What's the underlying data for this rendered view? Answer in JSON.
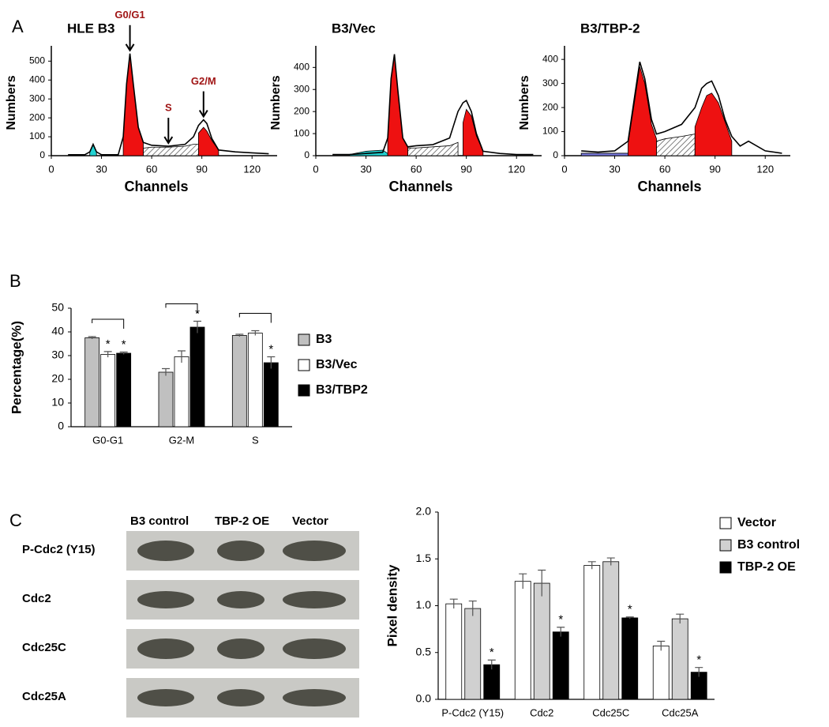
{
  "panel_labels": [
    "A",
    "B",
    "C"
  ],
  "blot": {
    "columns": [
      "B3 control",
      "TBP-2 OE",
      "Vector"
    ],
    "rows": [
      "P-Cdc2 (Y15)",
      "Cdc2",
      "Cdc25C",
      "Cdc25A"
    ]
  },
  "chart_data": [
    {
      "type": "area",
      "title": "HLE B3",
      "x_label": "Channels",
      "y_label": "Numbers",
      "xlim": [
        0,
        135
      ],
      "xticks": [
        0,
        30,
        60,
        90,
        120
      ],
      "ylim": [
        0,
        560
      ],
      "yticks": [
        0,
        100,
        200,
        300,
        400,
        500
      ],
      "x": [
        10,
        20,
        23,
        25,
        27,
        30,
        40,
        43,
        45,
        47,
        49,
        52,
        55,
        60,
        70,
        80,
        85,
        88,
        91,
        93,
        96,
        100,
        110,
        120,
        130
      ],
      "series": [
        {
          "style": "area",
          "color": "#22d3d3",
          "values": [
            null,
            null,
            20,
            60,
            20,
            null,
            null,
            null,
            null,
            null,
            null,
            null,
            null,
            null,
            null,
            null,
            null,
            null,
            null,
            null,
            null,
            null,
            null,
            null,
            null
          ]
        },
        {
          "style": "hatched",
          "color": "#666666",
          "values": [
            null,
            null,
            null,
            null,
            null,
            null,
            null,
            null,
            null,
            null,
            null,
            null,
            40,
            45,
            45,
            50,
            60,
            60,
            null,
            null,
            null,
            null,
            null,
            null,
            null
          ]
        },
        {
          "style": "area",
          "color": "#ee1111",
          "values": [
            null,
            null,
            null,
            null,
            null,
            null,
            null,
            100,
            380,
            540,
            380,
            150,
            70,
            null,
            null,
            null,
            null,
            120,
            150,
            130,
            80,
            30,
            null,
            null,
            null
          ]
        },
        {
          "style": "line",
          "color": "#000000",
          "values": [
            5,
            5,
            20,
            60,
            20,
            5,
            5,
            100,
            380,
            540,
            380,
            150,
            70,
            55,
            50,
            60,
            100,
            160,
            190,
            170,
            90,
            30,
            20,
            15,
            10
          ]
        }
      ],
      "annotations": [
        {
          "text": "G0/G1",
          "x": 47
        },
        {
          "text": "S",
          "x": 70
        },
        {
          "text": "G2/M",
          "x": 91
        }
      ]
    },
    {
      "type": "area",
      "title": "B3/Vec",
      "x_label": "Channels",
      "y_label": "Numbers",
      "xlim": [
        0,
        135
      ],
      "xticks": [
        0,
        30,
        60,
        90,
        120
      ],
      "ylim": [
        0,
        480
      ],
      "yticks": [
        0,
        100,
        200,
        300,
        400
      ],
      "x": [
        10,
        20,
        30,
        40,
        43,
        45,
        47,
        49,
        52,
        55,
        60,
        70,
        80,
        85,
        88,
        90,
        93,
        96,
        100,
        110,
        120,
        130
      ],
      "series": [
        {
          "style": "area",
          "color": "#22d3d3",
          "values": [
            null,
            5,
            20,
            25,
            10,
            null,
            null,
            null,
            null,
            null,
            null,
            null,
            null,
            null,
            null,
            null,
            null,
            null,
            null,
            null,
            null,
            null
          ]
        },
        {
          "style": "hatched",
          "color": "#666666",
          "values": [
            null,
            null,
            null,
            null,
            null,
            null,
            null,
            null,
            null,
            35,
            35,
            40,
            45,
            60,
            null,
            null,
            null,
            null,
            null,
            null,
            null,
            null
          ]
        },
        {
          "style": "area",
          "color": "#ee1111",
          "values": [
            null,
            null,
            null,
            null,
            80,
            350,
            460,
            300,
            80,
            40,
            null,
            null,
            null,
            null,
            150,
            210,
            180,
            90,
            20,
            null,
            null,
            null
          ]
        },
        {
          "style": "line",
          "color": "#000000",
          "values": [
            5,
            5,
            10,
            15,
            80,
            350,
            460,
            300,
            80,
            40,
            45,
            50,
            80,
            200,
            240,
            250,
            200,
            100,
            20,
            10,
            5,
            5
          ]
        }
      ]
    },
    {
      "type": "area",
      "title": "B3/TBP-2",
      "x_label": "Channels",
      "y_label": "Numbers",
      "xlim": [
        0,
        135
      ],
      "xticks": [
        0,
        30,
        60,
        90,
        120
      ],
      "ylim": [
        0,
        440
      ],
      "yticks": [
        0,
        100,
        200,
        300,
        400
      ],
      "x": [
        10,
        20,
        30,
        38,
        42,
        45,
        48,
        52,
        55,
        60,
        70,
        78,
        82,
        85,
        88,
        92,
        96,
        100,
        105,
        110,
        120,
        130
      ],
      "series": [
        {
          "style": "area",
          "color": "#7a7ae0",
          "values": [
            10,
            10,
            10,
            10,
            10,
            10,
            10,
            10,
            10,
            10,
            10,
            null,
            null,
            null,
            null,
            null,
            null,
            null,
            null,
            null,
            null,
            null
          ]
        },
        {
          "style": "hatched",
          "color": "#666666",
          "values": [
            null,
            null,
            null,
            null,
            null,
            null,
            null,
            null,
            60,
            70,
            80,
            90,
            null,
            null,
            null,
            null,
            null,
            null,
            null,
            null,
            null,
            null
          ]
        },
        {
          "style": "area",
          "color": "#ee1111",
          "values": [
            null,
            null,
            null,
            50,
            230,
            370,
            300,
            130,
            70,
            null,
            null,
            120,
            200,
            250,
            260,
            220,
            140,
            60,
            null,
            null,
            null,
            null
          ]
        },
        {
          "style": "line",
          "color": "#000000",
          "values": [
            20,
            15,
            20,
            60,
            250,
            390,
            320,
            150,
            90,
            100,
            130,
            200,
            280,
            300,
            310,
            250,
            150,
            80,
            40,
            60,
            20,
            10
          ]
        }
      ]
    },
    {
      "type": "bar",
      "y_label": "Percentage(%)",
      "categories": [
        "G0-G1",
        "G2-M",
        "S"
      ],
      "ylim": [
        0,
        50
      ],
      "yticks": [
        0,
        10,
        20,
        30,
        40,
        50
      ],
      "series": [
        {
          "name": "B3",
          "color": "#c0c0c0",
          "values": [
            37.5,
            23,
            38.5
          ],
          "errors": [
            0.5,
            1.5,
            0.5
          ],
          "significance": [
            null,
            null,
            null
          ]
        },
        {
          "name": "B3/Vec",
          "color": "#ffffff",
          "values": [
            30.5,
            29.5,
            39.5
          ],
          "errors": [
            1.2,
            2.5,
            1
          ],
          "significance": [
            "*",
            null,
            null
          ]
        },
        {
          "name": "B3/TBP2",
          "color": "#000000",
          "values": [
            31,
            42,
            27
          ],
          "errors": [
            0.5,
            2.5,
            2.5
          ],
          "significance": [
            "*",
            "*",
            "*"
          ]
        }
      ]
    },
    {
      "type": "bar",
      "y_label": "Pixel density",
      "categories": [
        "P-Cdc2 (Y15)",
        "Cdc2",
        "Cdc25C",
        "Cdc25A"
      ],
      "ylim": [
        0,
        2
      ],
      "yticks": [
        {
          "value": 0,
          "label": "0.0"
        },
        0.5,
        {
          "value": 1,
          "label": "1.0"
        },
        1.5,
        {
          "value": 2,
          "label": "2.0"
        }
      ],
      "series": [
        {
          "name": "Vector",
          "color": "#ffffff",
          "values": [
            1.02,
            1.26,
            1.43,
            0.57
          ],
          "errors": [
            0.05,
            0.08,
            0.04,
            0.05
          ],
          "significance": [
            null,
            null,
            null,
            null
          ]
        },
        {
          "name": "B3 control",
          "color": "#d0d0d0",
          "values": [
            0.97,
            1.24,
            1.47,
            0.86
          ],
          "errors": [
            0.08,
            0.14,
            0.04,
            0.05
          ],
          "significance": [
            null,
            null,
            null,
            null
          ]
        },
        {
          "name": "TBP-2 OE",
          "color": "#000000",
          "values": [
            0.37,
            0.72,
            0.87,
            0.29
          ],
          "errors": [
            0.05,
            0.05,
            0.01,
            0.05
          ],
          "significance": [
            "*",
            "*",
            "*",
            "*"
          ]
        }
      ]
    }
  ]
}
